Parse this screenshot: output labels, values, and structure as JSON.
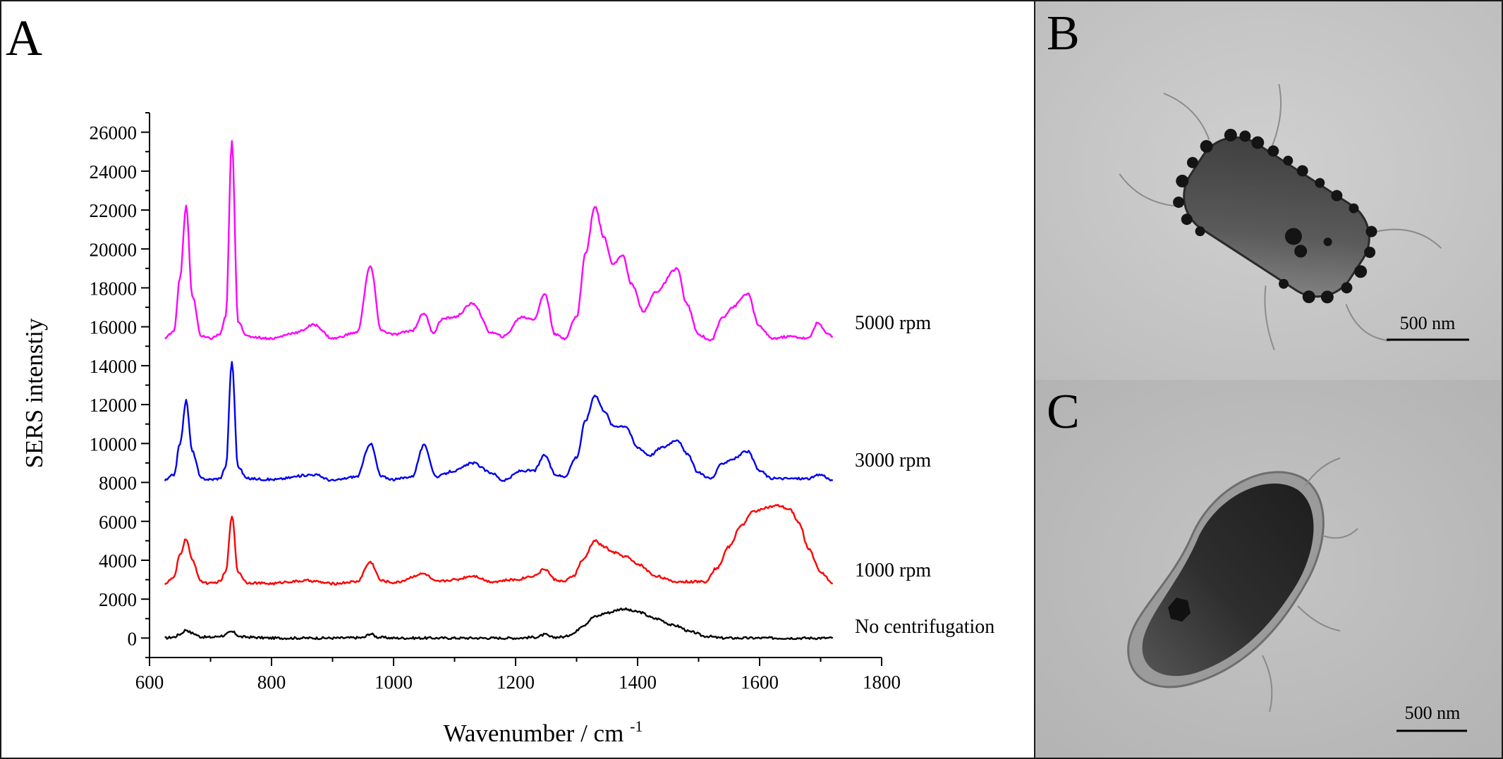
{
  "panels": {
    "a_label": "A",
    "b_label": "B",
    "c_label": "C"
  },
  "micrographs": {
    "b_scale_text": "500 nm",
    "c_scale_text": "500 nm"
  },
  "colors": {
    "no_centrifugation": "#000000",
    "rpm_1000": "#ff0000",
    "rpm_3000": "#0000ee",
    "rpm_5000": "#ff00ff",
    "axis": "#000000",
    "tem_background_b": "#c9c9c9",
    "tem_background_c": "#bfbfbf"
  },
  "chart_data": {
    "type": "line",
    "title": "",
    "xlabel": "Wavenumber / cm",
    "xlabel_superscript": "-1",
    "ylabel": "SERS intenstiy",
    "xlim": [
      600,
      1800
    ],
    "ylim": [
      -1000,
      27000
    ],
    "x_ticks": [
      600,
      800,
      1000,
      1200,
      1400,
      1600,
      1800
    ],
    "y_ticks": [
      0,
      2000,
      4000,
      6000,
      8000,
      10000,
      12000,
      14000,
      16000,
      18000,
      20000,
      22000,
      24000,
      26000
    ],
    "grid": false,
    "legend": "inline labels at right end of each series",
    "series": [
      {
        "name": "No centrifugation",
        "color": "#000000",
        "x": [
          625,
          640,
          650,
          660,
          670,
          685,
          700,
          720,
          735,
          750,
          800,
          900,
          950,
          962,
          975,
          1000,
          1100,
          1200,
          1235,
          1248,
          1260,
          1280,
          1295,
          1310,
          1330,
          1350,
          1375,
          1400,
          1430,
          1460,
          1490,
          1510,
          1540,
          1600,
          1650,
          1700,
          1720
        ],
        "y": [
          0,
          50,
          200,
          420,
          250,
          60,
          40,
          120,
          320,
          60,
          0,
          0,
          20,
          220,
          40,
          0,
          0,
          0,
          50,
          180,
          40,
          60,
          250,
          650,
          1100,
          1300,
          1500,
          1350,
          1000,
          650,
          300,
          100,
          0,
          0,
          0,
          0,
          0
        ]
      },
      {
        "name": "1000 rpm",
        "color": "#ff0000",
        "x": [
          625,
          640,
          650,
          660,
          670,
          685,
          700,
          715,
          725,
          735,
          745,
          760,
          800,
          830,
          860,
          900,
          940,
          962,
          980,
          1000,
          1050,
          1070,
          1100,
          1130,
          1160,
          1200,
          1230,
          1248,
          1265,
          1280,
          1295,
          1310,
          1330,
          1345,
          1360,
          1380,
          1400,
          1430,
          1460,
          1490,
          1510,
          1530,
          1550,
          1570,
          1590,
          1610,
          1630,
          1650,
          1665,
          1680,
          1700,
          1720
        ],
        "y": [
          2800,
          3100,
          4300,
          5100,
          4000,
          2900,
          2800,
          2900,
          3400,
          6300,
          3400,
          2850,
          2800,
          2900,
          2950,
          2800,
          2900,
          3900,
          2950,
          2850,
          3300,
          2900,
          3000,
          3200,
          2900,
          3000,
          3200,
          3550,
          3000,
          2900,
          3200,
          4000,
          5000,
          4700,
          4400,
          4200,
          3800,
          3200,
          2900,
          2900,
          2900,
          3600,
          4700,
          5800,
          6500,
          6700,
          6800,
          6600,
          5900,
          4600,
          3400,
          2800
        ]
      },
      {
        "name": "3000 rpm",
        "color": "#0000ee",
        "x": [
          625,
          640,
          650,
          660,
          670,
          685,
          700,
          715,
          725,
          735,
          745,
          760,
          800,
          870,
          900,
          940,
          962,
          980,
          1000,
          1030,
          1050,
          1070,
          1100,
          1130,
          1160,
          1180,
          1210,
          1230,
          1248,
          1265,
          1280,
          1300,
          1315,
          1330,
          1345,
          1360,
          1380,
          1400,
          1420,
          1440,
          1465,
          1480,
          1500,
          1520,
          1540,
          1555,
          1580,
          1600,
          1620,
          1650,
          1680,
          1700,
          1720
        ],
        "y": [
          8100,
          8400,
          10000,
          12200,
          9600,
          8200,
          8150,
          8200,
          8800,
          14200,
          8800,
          8200,
          8150,
          8400,
          8100,
          8300,
          10000,
          8300,
          8150,
          8300,
          9900,
          8300,
          8600,
          9000,
          8500,
          8100,
          8600,
          8600,
          9400,
          8400,
          8300,
          9300,
          11200,
          12500,
          11700,
          10900,
          10900,
          9800,
          9400,
          9800,
          10200,
          9500,
          8500,
          8200,
          9000,
          9200,
          9600,
          8600,
          8200,
          8200,
          8200,
          8400,
          8100
        ]
      },
      {
        "name": "5000 rpm",
        "color": "#ff00ff",
        "x": [
          625,
          640,
          650,
          660,
          670,
          685,
          700,
          715,
          725,
          735,
          745,
          760,
          800,
          840,
          870,
          900,
          940,
          962,
          980,
          1000,
          1030,
          1050,
          1065,
          1080,
          1100,
          1130,
          1160,
          1180,
          1210,
          1230,
          1248,
          1265,
          1280,
          1300,
          1315,
          1330,
          1345,
          1360,
          1375,
          1390,
          1410,
          1430,
          1465,
          1480,
          1500,
          1520,
          1540,
          1555,
          1580,
          1600,
          1620,
          1650,
          1680,
          1695,
          1710,
          1720
        ],
        "y": [
          15400,
          15800,
          18500,
          22200,
          17600,
          15500,
          15400,
          15600,
          16500,
          25500,
          16300,
          15500,
          15400,
          15700,
          16100,
          15400,
          15700,
          19100,
          15800,
          15600,
          15800,
          16700,
          15700,
          16400,
          16500,
          17200,
          15700,
          15500,
          16500,
          16400,
          17700,
          15600,
          15400,
          16500,
          19800,
          22200,
          20600,
          19200,
          19700,
          18200,
          16800,
          17800,
          19000,
          17200,
          15600,
          15300,
          16500,
          17000,
          17700,
          16000,
          15400,
          15500,
          15400,
          16200,
          15700,
          15500
        ]
      }
    ]
  }
}
